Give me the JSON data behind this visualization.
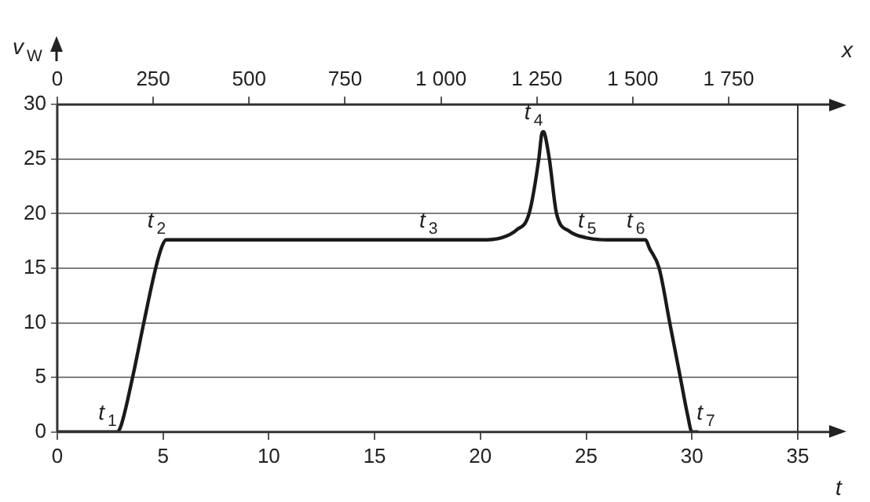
{
  "chart_data": {
    "type": "line",
    "xlabel": "t",
    "ylabel": "v$_{W}$",
    "x2label": "x",
    "series": [
      {
        "color": "#1a1a1a",
        "x": [
          0,
          2.83,
          3.0,
          3.56,
          4.09,
          4.65,
          4.95,
          5.15,
          10,
          15,
          20,
          21,
          21.7,
          22.3,
          22.76,
          22.9,
          22.97,
          23.04,
          23.26,
          23.6,
          24.2,
          25,
          26,
          27.8,
          28.0,
          28.45,
          28.95,
          29.45,
          29.8,
          30,
          30.3
        ],
        "values": [
          0,
          0,
          0.5,
          5,
          10,
          15,
          17,
          17.6,
          17.6,
          17.6,
          17.6,
          17.8,
          18.5,
          20,
          25,
          27.3,
          27.5,
          27.3,
          25,
          20,
          18.4,
          17.8,
          17.6,
          17.6,
          16.8,
          15,
          10,
          5,
          1.5,
          0,
          0
        ]
      }
    ],
    "annotations": [
      {
        "text": "t$_{1}$",
        "x": 2.83,
        "y": 0
      },
      {
        "text": "t$_{2}$",
        "x": 5.15,
        "y": 17.6
      },
      {
        "text": "t$_{3}$",
        "x": 18,
        "y": 17.6
      },
      {
        "text": "t$_{4}$",
        "x": 22.97,
        "y": 27.5
      },
      {
        "text": "t$_{5}$",
        "x": 25.5,
        "y": 17.6
      },
      {
        "text": "t$_{6}$",
        "x": 27.8,
        "y": 17.6
      },
      {
        "text": "t$_{7}$",
        "x": 30,
        "y": 0
      }
    ],
    "xlim": [
      0,
      35
    ],
    "xticks": [
      0,
      5,
      10,
      15,
      20,
      25,
      30,
      35
    ],
    "ylim": [
      0,
      30
    ],
    "yticks": [
      0,
      5,
      10,
      15,
      20,
      25,
      30
    ],
    "x2lim": [
      0,
      1930
    ],
    "x2ticks": [
      0,
      250,
      500,
      750,
      {
        "value": 1000,
        "label": "1 000"
      },
      {
        "value": 1250,
        "label": "1 250"
      },
      {
        "value": 1500,
        "label": "1 500"
      },
      {
        "value": 1750,
        "label": "1 750"
      }
    ],
    "grid": "y",
    "marker": "none",
    "line_style": "solid",
    "legend": false
  }
}
